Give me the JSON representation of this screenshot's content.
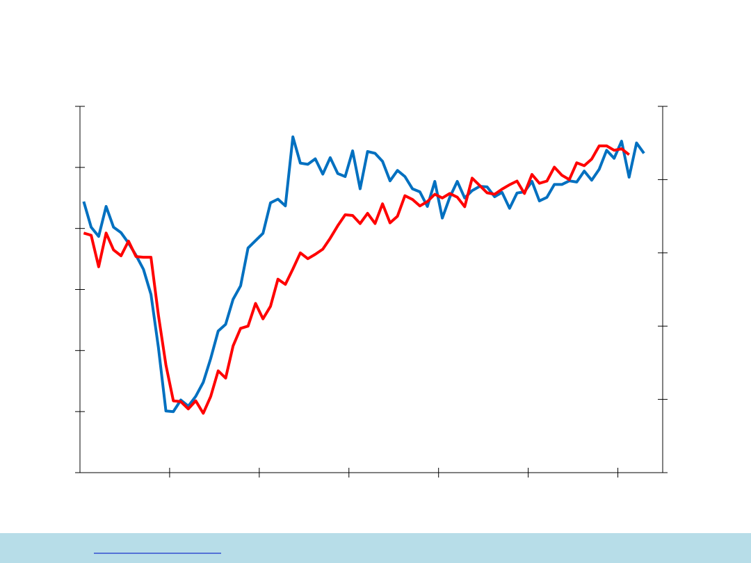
{
  "chart_data": {
    "type": "line",
    "x": [
      0.5,
      1.5,
      2.5,
      3.5,
      4.5,
      5.5,
      6.5,
      7.5,
      8.5,
      9.5,
      10.5,
      11.5,
      12.5,
      13.5,
      14.5,
      15.5,
      16.5,
      17.5,
      18.5,
      19.5,
      20.5,
      21.5,
      22.5,
      23.5,
      24.5,
      25.5,
      26.5,
      27.5,
      28.5,
      29.5,
      30.5,
      31.5,
      32.5,
      33.5,
      34.5,
      35.5,
      36.5,
      37.5,
      38.5,
      39.5,
      40.5,
      41.5,
      42.5,
      43.5,
      44.5,
      45.5,
      46.5,
      47.5,
      48.5,
      49.5,
      50.5,
      51.5,
      52.5,
      53.5,
      54.5,
      55.5,
      56.5,
      57.5,
      58.5,
      59.5,
      60.5,
      61.5,
      62.5,
      63.5,
      64.5,
      65.5,
      66.5,
      67.5,
      68.5,
      69.5,
      70.5,
      71.5,
      72.5,
      73.5,
      74.5,
      75.5
    ],
    "series": [
      {
        "color": "#0070c0",
        "axis": "y",
        "values": [
          4.44,
          4.02,
          3.87,
          4.36,
          4.02,
          3.93,
          3.76,
          3.56,
          3.33,
          2.92,
          2.05,
          1.01,
          1.0,
          1.19,
          1.09,
          1.25,
          1.48,
          1.87,
          2.32,
          2.43,
          2.84,
          3.06,
          3.68,
          3.8,
          3.92,
          4.42,
          4.48,
          4.37,
          5.5,
          5.07,
          5.05,
          5.14,
          4.89,
          5.16,
          4.9,
          4.85,
          5.27,
          4.65,
          5.26,
          5.23,
          5.1,
          4.78,
          4.95,
          4.85,
          4.65,
          4.6,
          4.36,
          4.77,
          4.17,
          4.51,
          4.77,
          4.5,
          4.62,
          4.69,
          4.68,
          4.52,
          4.59,
          4.33,
          4.58,
          4.6,
          4.77,
          4.45,
          4.51,
          4.72,
          4.72,
          4.78,
          4.76,
          4.94,
          4.79,
          4.97,
          5.28,
          5.15,
          5.43,
          4.84,
          5.4,
          5.23
        ]
      },
      {
        "color": "#ff0000",
        "axis": "y2",
        "values": [
          3.27,
          3.24,
          2.81,
          3.27,
          3.04,
          2.96,
          3.16,
          2.95,
          2.94,
          2.94,
          2.15,
          1.47,
          0.98,
          0.97,
          0.87,
          0.98,
          0.81,
          1.04,
          1.39,
          1.29,
          1.73,
          1.97,
          2.0,
          2.31,
          2.1,
          2.27,
          2.64,
          2.57,
          2.78,
          3.0,
          2.92,
          2.98,
          3.05,
          3.2,
          3.37,
          3.52,
          3.51,
          3.4,
          3.54,
          3.4,
          3.67,
          3.41,
          3.5,
          3.78,
          3.73,
          3.64,
          3.7,
          3.8,
          3.75,
          3.81,
          3.76,
          3.63,
          4.02,
          3.92,
          3.82,
          3.8,
          3.87,
          3.93,
          3.98,
          3.81,
          4.07,
          3.95,
          3.98,
          4.17,
          4.06,
          4.0,
          4.23,
          4.19,
          4.28,
          4.46,
          4.46,
          4.4,
          4.42,
          4.34,
          null,
          null
        ]
      }
    ],
    "xlim": [
      0,
      78
    ],
    "xticks": [
      12,
      24,
      36,
      48,
      60,
      72
    ],
    "ylim": [
      0,
      6
    ],
    "yticks": [
      0,
      1,
      2,
      3,
      4,
      5,
      6
    ],
    "y2lim": [
      0,
      5
    ],
    "y2ticks": [
      0,
      1,
      2,
      3,
      4,
      5
    ]
  }
}
